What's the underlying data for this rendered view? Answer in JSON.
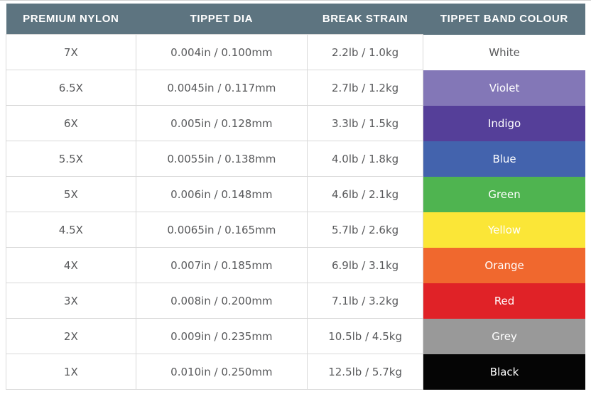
{
  "colors": {
    "header_bg": "#5d7480",
    "header_text": "#ffffff",
    "cell_text": "#58595b",
    "grid_line": "#d9d9d9"
  },
  "table": {
    "headers": [
      "PREMIUM NYLON",
      "TIPPET DIA",
      "BREAK STRAIN",
      "TIPPET BAND COLOUR"
    ],
    "rows": [
      {
        "nylon": "7X",
        "dia": "0.004in / 0.100mm",
        "strain": "2.2lb / 1.0kg",
        "band": "White",
        "band_color": "#ffffff",
        "band_text_color": "#58595b"
      },
      {
        "nylon": "6.5X",
        "dia": "0.0045in / 0.117mm",
        "strain": "2.7lb / 1.2kg",
        "band": "Violet",
        "band_color": "#8377b7",
        "band_text_color": "#ffffff"
      },
      {
        "nylon": "6X",
        "dia": "0.005in / 0.128mm",
        "strain": "3.3lb / 1.5kg",
        "band": "Indigo",
        "band_color": "#553f99",
        "band_text_color": "#ffffff"
      },
      {
        "nylon": "5.5X",
        "dia": "0.0055in / 0.138mm",
        "strain": "4.0lb / 1.8kg",
        "band": "Blue",
        "band_color": "#4363ad",
        "band_text_color": "#ffffff"
      },
      {
        "nylon": "5X",
        "dia": "0.006in / 0.148mm",
        "strain": "4.6lb / 2.1kg",
        "band": "Green",
        "band_color": "#4fb450",
        "band_text_color": "#ffffff"
      },
      {
        "nylon": "4.5X",
        "dia": "0.0065in / 0.165mm",
        "strain": "5.7lb / 2.6kg",
        "band": "Yellow",
        "band_color": "#fbe637",
        "band_text_color": "#ffffff"
      },
      {
        "nylon": "4X",
        "dia": "0.007in / 0.185mm",
        "strain": "6.9lb / 3.1kg",
        "band": "Orange",
        "band_color": "#f0682e",
        "band_text_color": "#ffffff"
      },
      {
        "nylon": "3X",
        "dia": "0.008in / 0.200mm",
        "strain": "7.1lb / 3.2kg",
        "band": "Red",
        "band_color": "#e02227",
        "band_text_color": "#ffffff"
      },
      {
        "nylon": "2X",
        "dia": "0.009in / 0.235mm",
        "strain": "10.5lb / 4.5kg",
        "band": "Grey",
        "band_color": "#999999",
        "band_text_color": "#ffffff"
      },
      {
        "nylon": "1X",
        "dia": "0.010in / 0.250mm",
        "strain": "12.5lb / 5.7kg",
        "band": "Black",
        "band_color": "#050505",
        "band_text_color": "#ffffff"
      }
    ]
  },
  "chart_data": {
    "type": "table",
    "title": "",
    "columns": [
      "PREMIUM NYLON",
      "TIPPET DIA",
      "BREAK STRAIN",
      "TIPPET BAND COLOUR"
    ],
    "rows": [
      [
        "7X",
        "0.004in / 0.100mm",
        "2.2lb / 1.0kg",
        "White"
      ],
      [
        "6.5X",
        "0.0045in / 0.117mm",
        "2.7lb / 1.2kg",
        "Violet"
      ],
      [
        "6X",
        "0.005in / 0.128mm",
        "3.3lb / 1.5kg",
        "Indigo"
      ],
      [
        "5.5X",
        "0.0055in / 0.138mm",
        "4.0lb / 1.8kg",
        "Blue"
      ],
      [
        "5X",
        "0.006in / 0.148mm",
        "4.6lb / 2.1kg",
        "Green"
      ],
      [
        "4.5X",
        "0.0065in / 0.165mm",
        "5.7lb / 2.6kg",
        "Yellow"
      ],
      [
        "4X",
        "0.007in / 0.185mm",
        "6.9lb / 3.1kg",
        "Orange"
      ],
      [
        "3X",
        "0.008in / 0.200mm",
        "7.1lb / 3.2kg",
        "Red"
      ],
      [
        "2X",
        "0.009in / 0.235mm",
        "10.5lb / 4.5kg",
        "Grey"
      ],
      [
        "1X",
        "0.010in / 0.250mm",
        "12.5lb / 5.7kg",
        "Black"
      ]
    ]
  }
}
